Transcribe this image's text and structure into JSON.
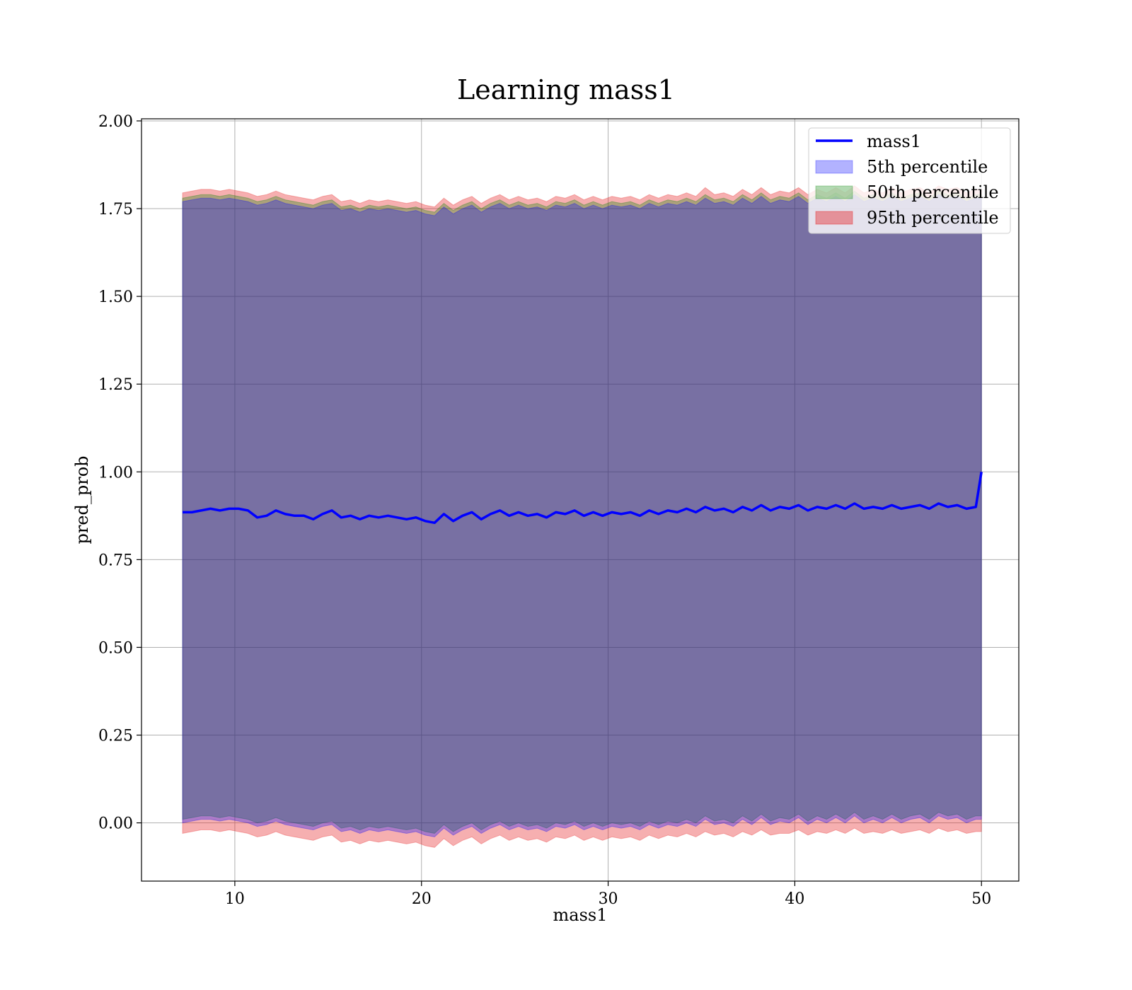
{
  "chart_data": {
    "type": "area",
    "title": "Learning mass1",
    "xlabel": "mass1",
    "ylabel": "pred_prob",
    "xlim": [
      5,
      52
    ],
    "ylim": [
      -0.166,
      2.006
    ],
    "x_ticks": [
      10,
      20,
      30,
      40,
      50
    ],
    "x_tick_labels": [
      "10",
      "20",
      "30",
      "40",
      "50"
    ],
    "y_ticks": [
      0.0,
      0.25,
      0.5,
      0.75,
      1.0,
      1.25,
      1.5,
      1.75,
      2.0
    ],
    "y_tick_labels": [
      "0.00",
      "0.25",
      "0.50",
      "0.75",
      "1.00",
      "1.25",
      "1.50",
      "1.75",
      "2.00"
    ],
    "grid": true,
    "legend_position": "top-right",
    "legend": [
      "mass1",
      "5th percentile",
      "50th percentile",
      "95th percentile"
    ],
    "x": [
      7.2,
      7.7,
      8.2,
      8.7,
      9.2,
      9.7,
      10.2,
      10.7,
      11.2,
      11.7,
      12.2,
      12.7,
      13.2,
      13.7,
      14.2,
      14.7,
      15.2,
      15.7,
      16.2,
      16.7,
      17.2,
      17.7,
      18.2,
      18.7,
      19.2,
      19.7,
      20.2,
      20.7,
      21.2,
      21.7,
      22.2,
      22.7,
      23.2,
      23.7,
      24.2,
      24.7,
      25.2,
      25.7,
      26.2,
      26.7,
      27.2,
      27.7,
      28.2,
      28.7,
      29.2,
      29.7,
      30.2,
      30.7,
      31.2,
      31.7,
      32.2,
      32.7,
      33.2,
      33.7,
      34.2,
      34.7,
      35.2,
      35.7,
      36.2,
      36.7,
      37.2,
      37.7,
      38.2,
      38.7,
      39.2,
      39.7,
      40.2,
      40.7,
      41.2,
      41.7,
      42.2,
      42.7,
      43.2,
      43.7,
      44.2,
      44.7,
      45.2,
      45.7,
      46.2,
      46.7,
      47.2,
      47.7,
      48.2,
      48.7,
      49.2,
      49.7,
      50.0
    ],
    "series": [
      {
        "name": "mass1",
        "kind": "line",
        "color": "#0000ff",
        "y": [
          0.885,
          0.885,
          0.89,
          0.895,
          0.89,
          0.895,
          0.895,
          0.89,
          0.87,
          0.875,
          0.89,
          0.88,
          0.875,
          0.875,
          0.865,
          0.88,
          0.89,
          0.87,
          0.875,
          0.865,
          0.875,
          0.87,
          0.875,
          0.87,
          0.865,
          0.87,
          0.86,
          0.855,
          0.88,
          0.86,
          0.875,
          0.885,
          0.865,
          0.88,
          0.89,
          0.875,
          0.885,
          0.875,
          0.88,
          0.87,
          0.885,
          0.88,
          0.89,
          0.875,
          0.885,
          0.875,
          0.885,
          0.88,
          0.885,
          0.875,
          0.89,
          0.88,
          0.89,
          0.885,
          0.895,
          0.885,
          0.9,
          0.89,
          0.895,
          0.885,
          0.9,
          0.89,
          0.905,
          0.89,
          0.9,
          0.895,
          0.905,
          0.89,
          0.9,
          0.895,
          0.905,
          0.895,
          0.91,
          0.895,
          0.9,
          0.895,
          0.905,
          0.895,
          0.9,
          0.905,
          0.895,
          0.91,
          0.9,
          0.905,
          0.895,
          0.9,
          1.0
        ]
      },
      {
        "name": "5th percentile",
        "kind": "band",
        "color": "#0000ff",
        "upper": [
          1.77,
          1.775,
          1.78,
          1.78,
          1.775,
          1.78,
          1.775,
          1.77,
          1.76,
          1.765,
          1.775,
          1.765,
          1.76,
          1.755,
          1.75,
          1.76,
          1.765,
          1.745,
          1.75,
          1.74,
          1.75,
          1.745,
          1.75,
          1.745,
          1.74,
          1.745,
          1.735,
          1.73,
          1.755,
          1.735,
          1.75,
          1.76,
          1.74,
          1.755,
          1.765,
          1.75,
          1.76,
          1.75,
          1.755,
          1.745,
          1.76,
          1.755,
          1.765,
          1.75,
          1.76,
          1.75,
          1.76,
          1.755,
          1.76,
          1.75,
          1.765,
          1.755,
          1.765,
          1.76,
          1.77,
          1.76,
          1.78,
          1.765,
          1.77,
          1.76,
          1.78,
          1.765,
          1.785,
          1.765,
          1.775,
          1.77,
          1.785,
          1.765,
          1.78,
          1.77,
          1.785,
          1.77,
          1.79,
          1.77,
          1.78,
          1.77,
          1.785,
          1.77,
          1.78,
          1.785,
          1.77,
          1.79,
          1.78,
          1.785,
          1.77,
          1.78,
          1.78
        ],
        "lower": [
          0.0,
          0.005,
          0.01,
          0.01,
          0.005,
          0.01,
          0.005,
          0.0,
          -0.01,
          -0.005,
          0.005,
          -0.005,
          -0.01,
          -0.015,
          -0.02,
          -0.01,
          -0.005,
          -0.025,
          -0.02,
          -0.03,
          -0.02,
          -0.025,
          -0.02,
          -0.025,
          -0.03,
          -0.025,
          -0.035,
          -0.04,
          -0.015,
          -0.035,
          -0.02,
          -0.01,
          -0.03,
          -0.015,
          -0.005,
          -0.02,
          -0.01,
          -0.02,
          -0.015,
          -0.025,
          -0.01,
          -0.015,
          -0.005,
          -0.02,
          -0.01,
          -0.02,
          -0.01,
          -0.015,
          -0.01,
          -0.02,
          -0.005,
          -0.015,
          -0.005,
          -0.01,
          0.0,
          -0.01,
          0.01,
          -0.005,
          0.0,
          -0.01,
          0.01,
          -0.005,
          0.015,
          -0.005,
          0.005,
          0.0,
          0.015,
          -0.005,
          0.01,
          0.0,
          0.015,
          0.0,
          0.02,
          0.0,
          0.01,
          0.0,
          0.015,
          0.0,
          0.01,
          0.015,
          0.0,
          0.02,
          0.01,
          0.015,
          0.0,
          0.01,
          0.01
        ]
      },
      {
        "name": "50th percentile",
        "kind": "band",
        "color": "#008000",
        "upper": [
          1.78,
          1.785,
          1.79,
          1.79,
          1.785,
          1.79,
          1.785,
          1.78,
          1.77,
          1.775,
          1.785,
          1.775,
          1.77,
          1.765,
          1.76,
          1.77,
          1.775,
          1.755,
          1.76,
          1.75,
          1.76,
          1.755,
          1.76,
          1.755,
          1.75,
          1.755,
          1.745,
          1.74,
          1.765,
          1.745,
          1.76,
          1.77,
          1.75,
          1.765,
          1.775,
          1.76,
          1.77,
          1.76,
          1.765,
          1.755,
          1.77,
          1.765,
          1.775,
          1.76,
          1.77,
          1.76,
          1.77,
          1.765,
          1.77,
          1.76,
          1.775,
          1.765,
          1.775,
          1.77,
          1.78,
          1.77,
          1.79,
          1.775,
          1.78,
          1.77,
          1.79,
          1.775,
          1.795,
          1.775,
          1.785,
          1.78,
          1.795,
          1.775,
          1.79,
          1.78,
          1.795,
          1.78,
          1.8,
          1.78,
          1.79,
          1.78,
          1.795,
          1.78,
          1.79,
          1.795,
          1.78,
          1.8,
          1.79,
          1.795,
          1.78,
          1.79,
          1.79
        ],
        "lower": [
          0.01,
          0.015,
          0.02,
          0.02,
          0.015,
          0.02,
          0.015,
          0.01,
          0.0,
          0.005,
          0.015,
          0.005,
          0.0,
          -0.005,
          -0.01,
          0.0,
          0.005,
          -0.015,
          -0.01,
          -0.02,
          -0.01,
          -0.015,
          -0.01,
          -0.015,
          -0.02,
          -0.015,
          -0.025,
          -0.03,
          -0.005,
          -0.025,
          -0.01,
          0.0,
          -0.02,
          -0.005,
          0.005,
          -0.01,
          0.0,
          -0.01,
          -0.005,
          -0.015,
          0.0,
          -0.005,
          0.005,
          -0.01,
          0.0,
          -0.01,
          0.0,
          -0.005,
          0.0,
          -0.01,
          0.005,
          -0.005,
          0.005,
          0.0,
          0.01,
          0.0,
          0.02,
          0.005,
          0.01,
          0.0,
          0.02,
          0.005,
          0.025,
          0.005,
          0.015,
          0.01,
          0.025,
          0.005,
          0.02,
          0.01,
          0.025,
          0.01,
          0.03,
          0.01,
          0.02,
          0.01,
          0.025,
          0.01,
          0.02,
          0.025,
          0.01,
          0.03,
          0.02,
          0.025,
          0.01,
          0.02,
          0.02
        ]
      },
      {
        "name": "95th percentile",
        "kind": "band",
        "color": "#e41a1c",
        "upper": [
          1.795,
          1.8,
          1.805,
          1.805,
          1.8,
          1.805,
          1.8,
          1.795,
          1.785,
          1.79,
          1.8,
          1.79,
          1.785,
          1.78,
          1.775,
          1.785,
          1.79,
          1.77,
          1.775,
          1.765,
          1.775,
          1.77,
          1.775,
          1.77,
          1.765,
          1.77,
          1.76,
          1.755,
          1.78,
          1.76,
          1.775,
          1.785,
          1.765,
          1.78,
          1.79,
          1.775,
          1.785,
          1.775,
          1.78,
          1.77,
          1.785,
          1.78,
          1.79,
          1.775,
          1.785,
          1.775,
          1.785,
          1.78,
          1.785,
          1.775,
          1.79,
          1.78,
          1.79,
          1.785,
          1.795,
          1.785,
          1.81,
          1.79,
          1.795,
          1.785,
          1.805,
          1.79,
          1.81,
          1.79,
          1.8,
          1.795,
          1.81,
          1.79,
          1.805,
          1.795,
          1.81,
          1.795,
          1.815,
          1.795,
          1.805,
          1.795,
          1.81,
          1.795,
          1.805,
          1.81,
          1.795,
          1.815,
          1.805,
          1.81,
          1.795,
          1.805,
          1.805
        ],
        "lower": [
          -0.03,
          -0.025,
          -0.02,
          -0.02,
          -0.025,
          -0.02,
          -0.025,
          -0.03,
          -0.04,
          -0.035,
          -0.025,
          -0.035,
          -0.04,
          -0.045,
          -0.05,
          -0.04,
          -0.035,
          -0.055,
          -0.05,
          -0.06,
          -0.05,
          -0.055,
          -0.05,
          -0.055,
          -0.06,
          -0.055,
          -0.065,
          -0.07,
          -0.045,
          -0.065,
          -0.05,
          -0.04,
          -0.06,
          -0.045,
          -0.035,
          -0.05,
          -0.04,
          -0.05,
          -0.045,
          -0.055,
          -0.04,
          -0.045,
          -0.035,
          -0.05,
          -0.04,
          -0.05,
          -0.04,
          -0.045,
          -0.04,
          -0.05,
          -0.035,
          -0.045,
          -0.035,
          -0.04,
          -0.03,
          -0.04,
          -0.025,
          -0.035,
          -0.03,
          -0.04,
          -0.025,
          -0.035,
          -0.02,
          -0.035,
          -0.03,
          -0.03,
          -0.02,
          -0.035,
          -0.025,
          -0.03,
          -0.02,
          -0.03,
          -0.015,
          -0.03,
          -0.025,
          -0.03,
          -0.02,
          -0.03,
          -0.025,
          -0.02,
          -0.03,
          -0.015,
          -0.025,
          -0.02,
          -0.03,
          -0.025,
          -0.025
        ]
      }
    ]
  }
}
